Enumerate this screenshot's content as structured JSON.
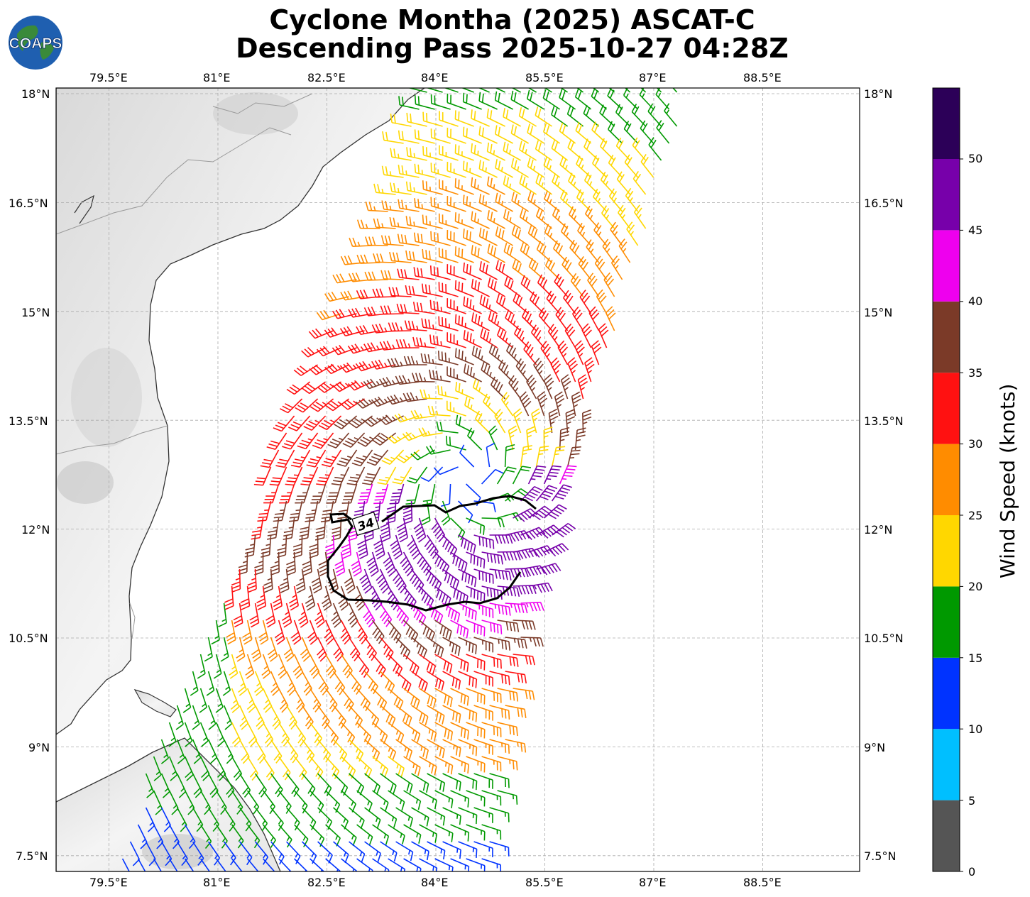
{
  "title_line1": "Cyclone Montha (2025) ASCAT-C",
  "title_line2": "Descending Pass 2025-10-27 04:28Z",
  "logo_text": "COAPS",
  "axes": {
    "lon_ticks": [
      "79.5°E",
      "81°E",
      "82.5°E",
      "84°E",
      "85.5°E",
      "87°E",
      "88.5°E"
    ],
    "lat_ticks": [
      "18°N",
      "16.5°N",
      "15°N",
      "13.5°N",
      "12°N",
      "10.5°N",
      "9°N",
      "7.5°N"
    ]
  },
  "contour_label": "34",
  "colorbar": {
    "label": "Wind Speed (knots)",
    "ticks": [
      "0",
      "5",
      "10",
      "15",
      "20",
      "25",
      "30",
      "35",
      "40",
      "45",
      "50"
    ],
    "colors": [
      "#555555",
      "#00bfff",
      "#0033ff",
      "#009900",
      "#ffd700",
      "#ff8c00",
      "#ff1111",
      "#7b3a28",
      "#ee00ee",
      "#7700aa",
      "#2c0058"
    ]
  },
  "storm_center": {
    "lon": 84.45,
    "lat": 12.7
  },
  "colors": {
    "coast": "#333333",
    "border": "#999999",
    "grid": "#aaaaaa"
  }
}
